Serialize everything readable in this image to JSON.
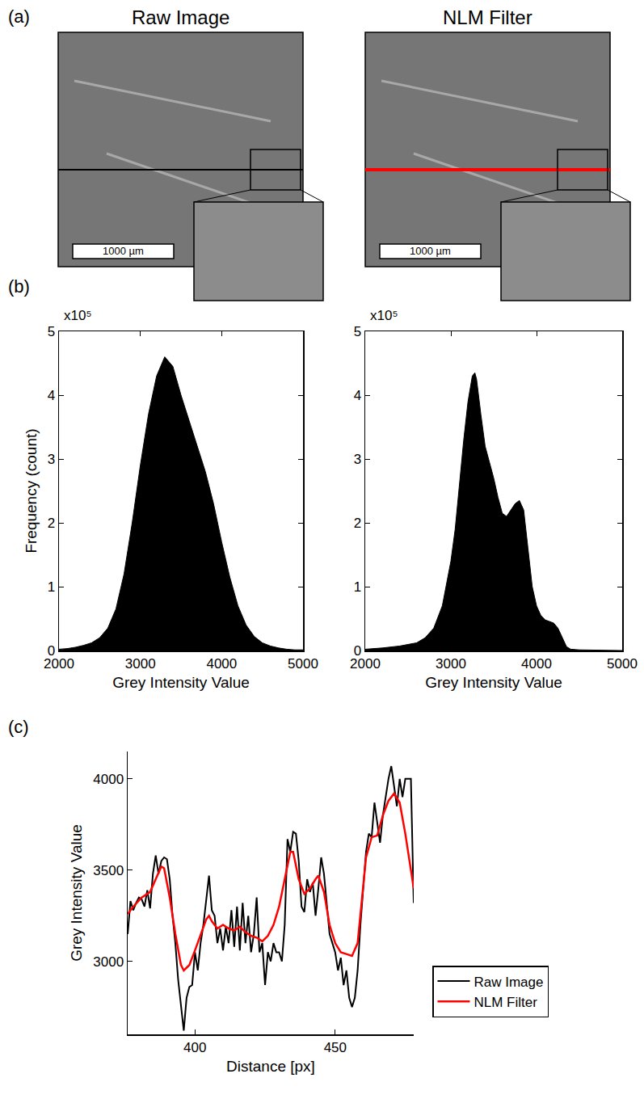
{
  "chart_data": [
    {
      "panel": "(a)",
      "type": "image",
      "title": "Raw Image",
      "annotations": [
        "1000 µm"
      ],
      "color": "#000000"
    },
    {
      "type": "image",
      "title": "NLM Filter",
      "annotations": [
        "1000 µm"
      ],
      "color": "#ff0000"
    },
    {
      "panel": "(b)",
      "type": "area",
      "color": "#000000",
      "x": [
        2000,
        2100,
        2200,
        2300,
        2400,
        2500,
        2600,
        2700,
        2800,
        2900,
        3000,
        3100,
        3200,
        3300,
        3400,
        3500,
        3600,
        3700,
        3800,
        3900,
        4000,
        4100,
        4200,
        4300,
        4400,
        4500,
        4600,
        4700,
        4800,
        4900,
        5000
      ],
      "values": [
        0.02,
        0.03,
        0.05,
        0.08,
        0.12,
        0.2,
        0.35,
        0.65,
        1.2,
        2.0,
        2.9,
        3.7,
        4.3,
        4.6,
        4.45,
        4.0,
        3.6,
        3.2,
        2.8,
        2.3,
        1.7,
        1.15,
        0.7,
        0.4,
        0.22,
        0.12,
        0.07,
        0.04,
        0.02,
        0.01,
        0.01
      ],
      "xlim": [
        2000,
        5000
      ],
      "xticks": [
        2000,
        3000,
        4000,
        5000
      ],
      "ylim": [
        0,
        5
      ],
      "yticks": [
        0,
        1,
        2,
        3,
        4,
        5
      ],
      "x_label": "Grey Intensity Value",
      "y_label": "Frequency (count)",
      "annotations": [
        "x10⁵"
      ]
    },
    {
      "type": "area",
      "color": "#000000",
      "x": [
        2000,
        2200,
        2400,
        2600,
        2700,
        2800,
        2900,
        3000,
        3050,
        3100,
        3150,
        3200,
        3250,
        3280,
        3300,
        3350,
        3400,
        3450,
        3500,
        3550,
        3600,
        3650,
        3700,
        3750,
        3800,
        3850,
        3900,
        3950,
        4000,
        4050,
        4100,
        4150,
        4200,
        4250,
        4300,
        4350,
        4400,
        4500,
        5000
      ],
      "values": [
        0.02,
        0.04,
        0.07,
        0.12,
        0.2,
        0.35,
        0.7,
        1.4,
        1.9,
        2.6,
        3.3,
        3.9,
        4.3,
        4.35,
        4.25,
        3.7,
        3.2,
        2.95,
        2.7,
        2.4,
        2.15,
        2.1,
        2.2,
        2.3,
        2.35,
        2.2,
        1.6,
        1.0,
        0.7,
        0.55,
        0.48,
        0.45,
        0.43,
        0.35,
        0.2,
        0.06,
        0.02,
        0.01,
        0
      ],
      "xlim": [
        2000,
        5000
      ],
      "xticks": [
        2000,
        3000,
        4000,
        5000
      ],
      "ylim": [
        0,
        5
      ],
      "yticks": [
        0,
        1,
        2,
        3,
        4,
        5
      ],
      "x_label": "Grey Intensity Value",
      "annotations": [
        "x10⁵"
      ]
    },
    {
      "panel": "(c)",
      "type": "line",
      "series": [
        {
          "name": "Raw Image",
          "color": "#000000",
          "x": [
            376,
            377,
            378,
            379,
            380,
            381,
            382,
            383,
            384,
            385,
            386,
            387,
            388,
            389,
            390,
            391,
            392,
            393,
            394,
            395,
            396,
            397,
            398,
            399,
            400,
            401,
            402,
            403,
            404,
            405,
            406,
            407,
            408,
            409,
            410,
            411,
            412,
            413,
            414,
            415,
            416,
            417,
            418,
            419,
            420,
            421,
            422,
            423,
            424,
            425,
            426,
            427,
            428,
            429,
            430,
            431,
            432,
            433,
            434,
            435,
            436,
            437,
            438,
            439,
            440,
            441,
            442,
            443,
            444,
            445,
            446,
            447,
            448,
            449,
            450,
            451,
            452,
            453,
            454,
            455,
            456,
            457,
            458,
            459,
            460,
            461,
            462,
            463,
            464,
            465,
            466,
            467,
            468,
            469,
            470,
            471,
            472,
            473,
            474,
            475,
            476,
            477,
            478
          ],
          "values": [
            3150,
            3330,
            3280,
            3320,
            3350,
            3340,
            3300,
            3390,
            3290,
            3480,
            3580,
            3480,
            3550,
            3570,
            3560,
            3450,
            3250,
            3100,
            2900,
            2750,
            2620,
            2800,
            2860,
            2870,
            3050,
            2950,
            3100,
            3200,
            3350,
            3470,
            3280,
            3250,
            3100,
            3180,
            3060,
            3190,
            3100,
            3280,
            3080,
            3300,
            3060,
            3320,
            3100,
            3250,
            3050,
            3150,
            3350,
            3050,
            3100,
            2870,
            3050,
            3000,
            3100,
            3050,
            3050,
            3000,
            3200,
            3670,
            3600,
            3710,
            3700,
            3550,
            3300,
            3270,
            3450,
            3380,
            3430,
            3250,
            3400,
            3570,
            3480,
            3300,
            3150,
            3100,
            3050,
            2950,
            3020,
            2870,
            2950,
            2800,
            2750,
            2800,
            2950,
            3200,
            3400,
            3600,
            3700,
            3680,
            3870,
            3750,
            3650,
            3800,
            3900,
            4000,
            4070,
            3950,
            3850,
            4000,
            3900,
            4000,
            4000,
            4000,
            3320
          ]
        },
        {
          "name": "NLM Filter",
          "color": "#ff0000",
          "x": [
            376,
            378,
            381,
            384,
            386,
            388,
            389,
            391,
            393,
            395,
            396,
            398,
            400,
            402,
            404,
            405,
            406,
            408,
            410,
            412,
            414,
            416,
            418,
            420,
            422,
            424,
            426,
            428,
            430,
            432,
            434,
            435,
            437,
            439,
            441,
            443,
            444,
            446,
            448,
            450,
            452,
            454,
            456,
            458,
            460,
            461,
            463,
            465,
            467,
            469,
            471,
            473,
            475,
            477,
            478
          ],
          "values": [
            3260,
            3300,
            3350,
            3380,
            3450,
            3520,
            3510,
            3350,
            3150,
            2980,
            2950,
            2980,
            3060,
            3150,
            3230,
            3250,
            3220,
            3180,
            3200,
            3180,
            3170,
            3190,
            3160,
            3140,
            3130,
            3110,
            3140,
            3200,
            3300,
            3450,
            3600,
            3600,
            3450,
            3370,
            3400,
            3450,
            3470,
            3380,
            3200,
            3100,
            3050,
            3040,
            3030,
            3100,
            3400,
            3570,
            3680,
            3690,
            3800,
            3880,
            3920,
            3870,
            3700,
            3500,
            3400
          ]
        }
      ],
      "xlim": [
        376,
        478
      ],
      "xticks": [
        400,
        450
      ],
      "ylim": [
        2600,
        4150
      ],
      "yticks": [
        3000,
        3500,
        4000
      ],
      "x_label": "Distance [px]",
      "y_label": "Grey Intensity Value",
      "legend": "right"
    }
  ]
}
